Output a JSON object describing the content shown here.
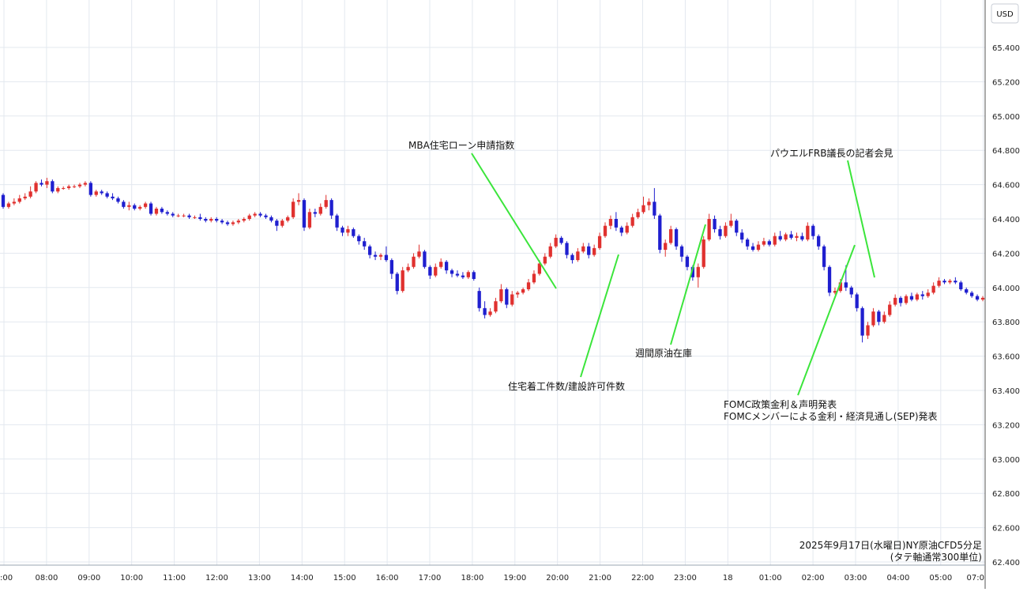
{
  "chart_data": {
    "type": "candlestick",
    "currency_unit": "USD",
    "caption_line1": "2025年9月17日(水曜日)NY原油CFD5分足",
    "caption_line2": "(タテ軸通常300単位)",
    "ylim": [
      62.4,
      65.6
    ],
    "yticks": [
      "62.400",
      "62.600",
      "62.800",
      "63.000",
      "63.200",
      "63.400",
      "63.600",
      "63.800",
      "64.000",
      "64.200",
      "64.400",
      "64.600",
      "64.800",
      "65.000",
      "65.200",
      "65.400"
    ],
    "xtick_labels": [
      ":00",
      "08:00",
      "09:00",
      "10:00",
      "11:00",
      "12:00",
      "13:00",
      "14:00",
      "15:00",
      "16:00",
      "17:00",
      "18:00",
      "19:00",
      "20:00",
      "21:00",
      "22:00",
      "23:00",
      "18",
      "01:00",
      "02:00",
      "03:00",
      "04:00",
      "05:00",
      "07:0"
    ],
    "grid": true,
    "colors": {
      "up": "#e0312f",
      "down": "#1f1fcf",
      "annotation_line": "#3be53b",
      "grid": "#e3e8ef"
    },
    "candles": [
      [
        64.54,
        64.55,
        64.46,
        64.47
      ],
      [
        64.47,
        64.5,
        64.46,
        64.49
      ],
      [
        64.49,
        64.52,
        64.48,
        64.5
      ],
      [
        64.5,
        64.54,
        64.49,
        64.52
      ],
      [
        64.52,
        64.55,
        64.51,
        64.53
      ],
      [
        64.53,
        64.59,
        64.52,
        64.56
      ],
      [
        64.56,
        64.62,
        64.55,
        64.61
      ],
      [
        64.61,
        64.63,
        64.59,
        64.6
      ],
      [
        64.6,
        64.64,
        64.58,
        64.62
      ],
      [
        64.62,
        64.63,
        64.55,
        64.56
      ],
      [
        64.56,
        64.59,
        64.55,
        64.58
      ],
      [
        64.58,
        64.59,
        64.57,
        64.58
      ],
      [
        64.58,
        64.6,
        64.57,
        64.59
      ],
      [
        64.59,
        64.6,
        64.58,
        64.59
      ],
      [
        64.59,
        64.61,
        64.58,
        64.6
      ],
      [
        64.6,
        64.62,
        64.59,
        64.61
      ],
      [
        64.61,
        64.62,
        64.53,
        64.54
      ],
      [
        64.54,
        64.57,
        64.53,
        64.56
      ],
      [
        64.56,
        64.57,
        64.54,
        64.55
      ],
      [
        64.55,
        64.56,
        64.52,
        64.53
      ],
      [
        64.53,
        64.55,
        64.51,
        64.52
      ],
      [
        64.52,
        64.53,
        64.49,
        64.5
      ],
      [
        64.5,
        64.51,
        64.46,
        64.47
      ],
      [
        64.47,
        64.5,
        64.45,
        64.48
      ],
      [
        64.48,
        64.49,
        64.45,
        64.46
      ],
      [
        64.46,
        64.48,
        64.45,
        64.47
      ],
      [
        64.47,
        64.5,
        64.46,
        64.49
      ],
      [
        64.49,
        64.5,
        64.42,
        64.43
      ],
      [
        64.43,
        64.47,
        64.42,
        64.46
      ],
      [
        64.46,
        64.47,
        64.43,
        64.44
      ],
      [
        64.44,
        64.45,
        64.42,
        64.43
      ],
      [
        64.43,
        64.44,
        64.41,
        64.42
      ],
      [
        64.42,
        64.43,
        64.41,
        64.42
      ],
      [
        64.42,
        64.43,
        64.41,
        64.42
      ],
      [
        64.42,
        64.43,
        64.4,
        64.41
      ],
      [
        64.41,
        64.42,
        64.4,
        64.41
      ],
      [
        64.41,
        64.43,
        64.39,
        64.4
      ],
      [
        64.4,
        64.41,
        64.38,
        64.39
      ],
      [
        64.39,
        64.41,
        64.38,
        64.4
      ],
      [
        64.4,
        64.41,
        64.38,
        64.39
      ],
      [
        64.39,
        64.4,
        64.37,
        64.38
      ],
      [
        64.38,
        64.39,
        64.36,
        64.37
      ],
      [
        64.37,
        64.39,
        64.36,
        64.38
      ],
      [
        64.38,
        64.4,
        64.37,
        64.39
      ],
      [
        64.39,
        64.41,
        64.38,
        64.4
      ],
      [
        64.4,
        64.43,
        64.39,
        64.42
      ],
      [
        64.42,
        64.44,
        64.41,
        64.43
      ],
      [
        64.43,
        64.44,
        64.41,
        64.42
      ],
      [
        64.42,
        64.43,
        64.4,
        64.41
      ],
      [
        64.41,
        64.42,
        64.38,
        64.39
      ],
      [
        64.39,
        64.4,
        64.33,
        64.36
      ],
      [
        64.36,
        64.4,
        64.35,
        64.39
      ],
      [
        64.39,
        64.42,
        64.38,
        64.41
      ],
      [
        64.41,
        64.52,
        64.4,
        64.5
      ],
      [
        64.5,
        64.55,
        64.48,
        64.51
      ],
      [
        64.51,
        64.52,
        64.33,
        64.35
      ],
      [
        64.35,
        64.46,
        64.34,
        64.44
      ],
      [
        64.44,
        64.46,
        64.41,
        64.43
      ],
      [
        64.43,
        64.49,
        64.42,
        64.47
      ],
      [
        64.47,
        64.54,
        64.46,
        64.51
      ],
      [
        64.51,
        64.52,
        64.4,
        64.42
      ],
      [
        64.42,
        64.43,
        64.33,
        64.35
      ],
      [
        64.35,
        64.36,
        64.3,
        64.32
      ],
      [
        64.32,
        64.36,
        64.3,
        64.34
      ],
      [
        64.34,
        64.35,
        64.29,
        64.3
      ],
      [
        64.3,
        64.31,
        64.25,
        64.27
      ],
      [
        64.27,
        64.29,
        64.22,
        64.24
      ],
      [
        64.24,
        64.25,
        64.17,
        64.19
      ],
      [
        64.19,
        64.21,
        64.16,
        64.18
      ],
      [
        64.18,
        64.2,
        64.16,
        64.19
      ],
      [
        64.19,
        64.24,
        64.15,
        64.16
      ],
      [
        64.16,
        64.17,
        64.05,
        64.08
      ],
      [
        64.08,
        64.09,
        63.96,
        63.98
      ],
      [
        63.98,
        64.12,
        63.97,
        64.1
      ],
      [
        64.1,
        64.14,
        64.09,
        64.12
      ],
      [
        64.12,
        64.2,
        64.11,
        64.18
      ],
      [
        64.18,
        64.25,
        64.17,
        64.21
      ],
      [
        64.21,
        64.22,
        64.11,
        64.12
      ],
      [
        64.12,
        64.13,
        64.05,
        64.07
      ],
      [
        64.07,
        64.14,
        64.06,
        64.12
      ],
      [
        64.12,
        64.17,
        64.11,
        64.15
      ],
      [
        64.15,
        64.16,
        64.08,
        64.1
      ],
      [
        64.1,
        64.11,
        64.06,
        64.08
      ],
      [
        64.08,
        64.1,
        64.06,
        64.07
      ],
      [
        64.07,
        64.09,
        64.05,
        64.06
      ],
      [
        64.06,
        64.1,
        64.05,
        64.09
      ],
      [
        64.09,
        64.1,
        64.04,
        64.05
      ],
      [
        63.98,
        64.0,
        63.86,
        63.88
      ],
      [
        63.88,
        63.92,
        63.82,
        63.84
      ],
      [
        63.84,
        63.88,
        63.83,
        63.86
      ],
      [
        63.86,
        63.94,
        63.85,
        63.92
      ],
      [
        63.92,
        64.02,
        63.91,
        63.99
      ],
      [
        63.99,
        64.0,
        63.88,
        63.9
      ],
      [
        63.9,
        63.98,
        63.89,
        63.96
      ],
      [
        63.96,
        63.98,
        63.94,
        63.97
      ],
      [
        63.97,
        64.0,
        63.96,
        63.99
      ],
      [
        63.99,
        64.05,
        63.98,
        64.03
      ],
      [
        64.03,
        64.1,
        64.02,
        64.08
      ],
      [
        64.08,
        64.16,
        64.07,
        64.14
      ],
      [
        64.14,
        64.2,
        64.13,
        64.18
      ],
      [
        64.18,
        64.26,
        64.17,
        64.24
      ],
      [
        64.24,
        64.31,
        64.23,
        64.29
      ],
      [
        64.29,
        64.3,
        64.25,
        64.26
      ],
      [
        64.26,
        64.27,
        64.17,
        64.19
      ],
      [
        64.19,
        64.2,
        64.14,
        64.16
      ],
      [
        64.16,
        64.23,
        64.15,
        64.21
      ],
      [
        64.21,
        64.26,
        64.2,
        64.24
      ],
      [
        64.24,
        64.26,
        64.17,
        64.19
      ],
      [
        64.19,
        64.25,
        64.18,
        64.23
      ],
      [
        64.23,
        64.32,
        64.22,
        64.3
      ],
      [
        64.3,
        64.38,
        64.29,
        64.36
      ],
      [
        64.36,
        64.42,
        64.34,
        64.4
      ],
      [
        64.4,
        64.44,
        64.33,
        64.35
      ],
      [
        64.35,
        64.36,
        64.3,
        64.32
      ],
      [
        64.32,
        64.38,
        64.31,
        64.36
      ],
      [
        64.36,
        64.43,
        64.35,
        64.41
      ],
      [
        64.41,
        64.46,
        64.4,
        64.44
      ],
      [
        64.44,
        64.53,
        64.43,
        64.48
      ],
      [
        64.48,
        64.52,
        64.45,
        64.5
      ],
      [
        64.5,
        64.58,
        64.4,
        64.42
      ],
      [
        64.42,
        64.43,
        64.2,
        64.22
      ],
      [
        64.22,
        64.28,
        64.18,
        64.26
      ],
      [
        64.26,
        64.36,
        64.25,
        64.34
      ],
      [
        64.34,
        64.35,
        64.22,
        64.24
      ],
      [
        64.24,
        64.25,
        64.15,
        64.18
      ],
      [
        64.18,
        64.19,
        64.1,
        64.12
      ],
      [
        64.12,
        64.13,
        64.04,
        64.06
      ],
      [
        64.06,
        64.14,
        64.0,
        64.12
      ],
      [
        64.12,
        64.3,
        64.11,
        64.28
      ],
      [
        64.28,
        64.43,
        64.27,
        64.4
      ],
      [
        64.4,
        64.42,
        64.32,
        64.34
      ],
      [
        64.34,
        64.36,
        64.28,
        64.3
      ],
      [
        64.3,
        64.38,
        64.29,
        64.36
      ],
      [
        64.36,
        64.43,
        64.35,
        64.39
      ],
      [
        64.39,
        64.4,
        64.3,
        64.32
      ],
      [
        64.32,
        64.34,
        64.26,
        64.28
      ],
      [
        64.28,
        64.29,
        64.22,
        64.24
      ],
      [
        64.24,
        64.26,
        64.21,
        64.22
      ],
      [
        64.22,
        64.27,
        64.21,
        64.25
      ],
      [
        64.25,
        64.29,
        64.24,
        64.27
      ],
      [
        64.27,
        64.28,
        64.24,
        64.25
      ],
      [
        64.25,
        64.32,
        64.24,
        64.3
      ],
      [
        64.3,
        64.33,
        64.27,
        64.28
      ],
      [
        64.28,
        64.32,
        64.27,
        64.31
      ],
      [
        64.31,
        64.33,
        64.28,
        64.29
      ],
      [
        64.29,
        64.32,
        64.27,
        64.3
      ],
      [
        64.3,
        64.32,
        64.27,
        64.28
      ],
      [
        64.28,
        64.38,
        64.27,
        64.36
      ],
      [
        64.36,
        64.37,
        64.28,
        64.3
      ],
      [
        64.3,
        64.31,
        64.22,
        64.24
      ],
      [
        64.24,
        64.25,
        64.1,
        64.12
      ],
      [
        64.12,
        64.13,
        63.95,
        63.97
      ],
      [
        63.97,
        64.0,
        63.96,
        63.98
      ],
      [
        63.98,
        64.05,
        63.97,
        64.03
      ],
      [
        64.03,
        64.13,
        63.98,
        64.0
      ],
      [
        64.0,
        64.01,
        63.94,
        63.96
      ],
      [
        63.96,
        63.97,
        63.86,
        63.88
      ],
      [
        63.88,
        63.89,
        63.68,
        63.72
      ],
      [
        63.72,
        63.8,
        63.7,
        63.78
      ],
      [
        63.78,
        63.88,
        63.77,
        63.86
      ],
      [
        63.86,
        63.87,
        63.78,
        63.8
      ],
      [
        63.8,
        63.86,
        63.79,
        63.84
      ],
      [
        63.84,
        63.92,
        63.83,
        63.9
      ],
      [
        63.9,
        63.96,
        63.89,
        63.94
      ],
      [
        63.94,
        63.95,
        63.89,
        63.91
      ],
      [
        63.91,
        63.96,
        63.9,
        63.95
      ],
      [
        63.95,
        63.97,
        63.92,
        63.93
      ],
      [
        63.93,
        63.97,
        63.92,
        63.96
      ],
      [
        63.96,
        63.98,
        63.93,
        63.95
      ],
      [
        63.95,
        63.99,
        63.94,
        63.97
      ],
      [
        63.97,
        64.03,
        63.96,
        64.01
      ],
      [
        64.01,
        64.06,
        64.0,
        64.04
      ],
      [
        64.04,
        64.05,
        64.02,
        64.03
      ],
      [
        64.03,
        64.05,
        64.02,
        64.04
      ],
      [
        64.04,
        64.06,
        64.02,
        64.03
      ],
      [
        64.03,
        64.04,
        63.98,
        63.99
      ],
      [
        63.99,
        64.0,
        63.96,
        63.97
      ],
      [
        63.97,
        63.98,
        63.94,
        63.95
      ],
      [
        63.95,
        63.96,
        63.92,
        63.93
      ],
      [
        63.93,
        63.95,
        63.92,
        63.94
      ]
    ],
    "annotations": [
      {
        "text": "MBA住宅ローン申請指数"
      },
      {
        "text": "住宅着工件数/建設許可件数"
      },
      {
        "text": "週間原油在庫"
      },
      {
        "text": "パウエルFRB議長の記者会見"
      },
      {
        "text": "FOMC政策金利＆声明発表"
      },
      {
        "text": "FOMCメンバーによる金利・経済見通し(SEP)発表"
      }
    ]
  }
}
